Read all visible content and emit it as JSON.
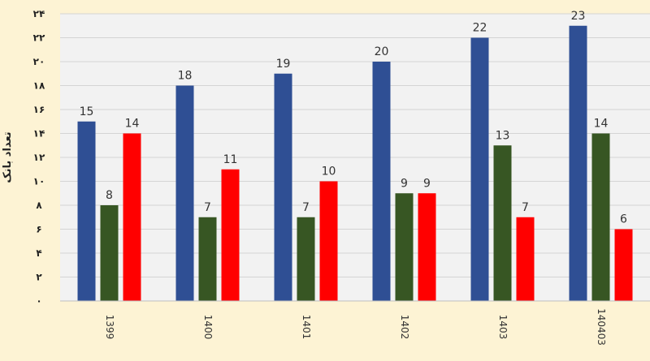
{
  "chart_data": {
    "type": "bar",
    "title": "",
    "ylabel": "تعداد بانک",
    "xlabel": "",
    "categories": [
      "1399",
      "1400",
      "1401",
      "1402",
      "1403",
      "140403"
    ],
    "series": [
      {
        "values": [
          15,
          18,
          19,
          20,
          22,
          23
        ],
        "color": "#2f4f94"
      },
      {
        "values": [
          8,
          7,
          7,
          9,
          13,
          14
        ],
        "color": "#375623"
      },
      {
        "values": [
          14,
          11,
          10,
          9,
          7,
          6
        ],
        "color": "#ff0000"
      }
    ],
    "ylim": [
      0,
      24
    ],
    "yticks": [
      "۰",
      "۲",
      "۴",
      "۶",
      "۸",
      "۱۰",
      "۱۲",
      "۱۴",
      "۱۶",
      "۱۸",
      "۲۰",
      "۲۲",
      "۲۴"
    ],
    "grid": true,
    "plot_background": "#f2f2f2",
    "page_background": "#fdf3d4"
  }
}
